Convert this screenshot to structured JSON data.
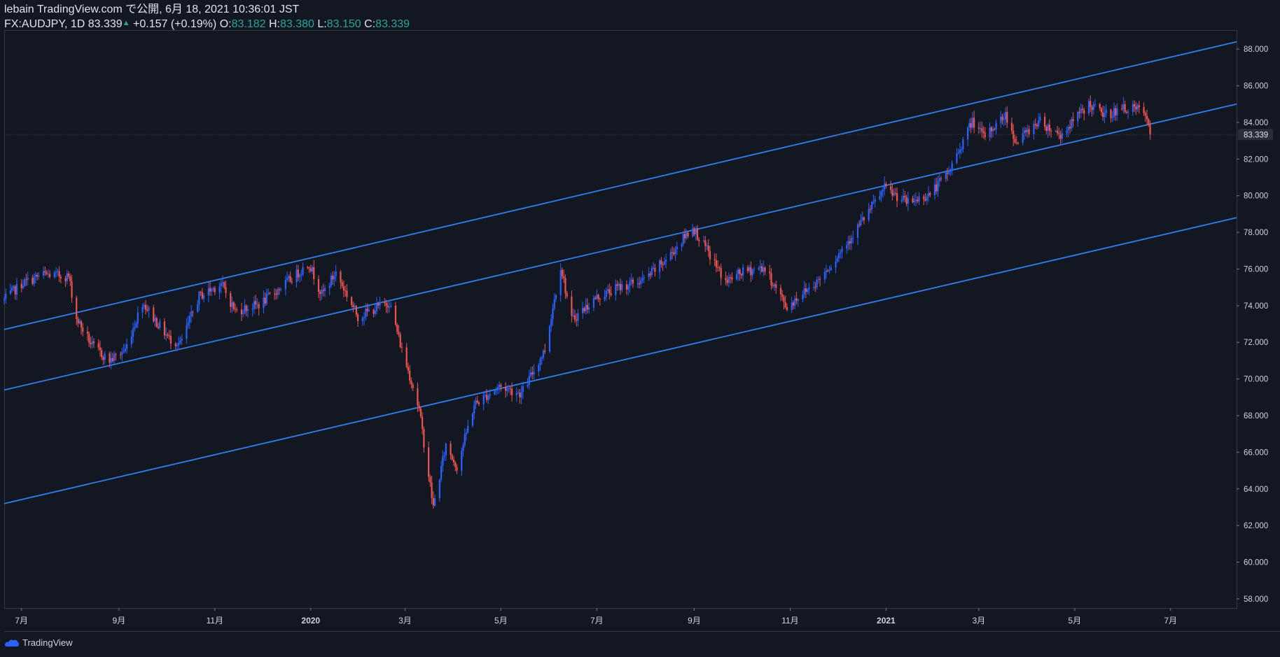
{
  "header": {
    "line1": "lebain TradingView.com で公開, 6月 18, 2021 10:36:01 JST",
    "symbol": "FX:AUDJPY, 1D 83.339",
    "change": "+0.157 (+0.19%)",
    "o_label": "O:",
    "o_value": "83.182",
    "h_label": "H:",
    "h_value": "83.380",
    "l_label": "L:",
    "l_value": "83.150",
    "c_label": "C:",
    "c_value": "83.339"
  },
  "brand": {
    "name": "TradingView",
    "icon": "tradingview-cloud-icon"
  },
  "colors": {
    "background": "#131722",
    "up": "#2962ff",
    "down": "#ef5350",
    "trendline": "#2f80ed",
    "axis_text": "#d1d4dc",
    "border": "#363a45"
  },
  "chart_data": {
    "type": "candlestick",
    "symbol": "FX:AUDJPY",
    "interval": "1D",
    "last_price": "83.339",
    "y_ticks": [
      "88.000",
      "86.000",
      "84.000",
      "82.000",
      "80.000",
      "78.000",
      "76.000",
      "74.000",
      "72.000",
      "70.000",
      "68.000",
      "66.000",
      "64.000",
      "62.000",
      "60.000",
      "58.000"
    ],
    "ylim": [
      57.5,
      89.0
    ],
    "x_ticks": [
      {
        "label": "7月",
        "date": "2019-07-01"
      },
      {
        "label": "9月",
        "date": "2019-09-01"
      },
      {
        "label": "11月",
        "date": "2019-11-01"
      },
      {
        "label": "2020",
        "date": "2020-01-01"
      },
      {
        "label": "3月",
        "date": "2020-03-01"
      },
      {
        "label": "5月",
        "date": "2020-05-01"
      },
      {
        "label": "7月",
        "date": "2020-07-01"
      },
      {
        "label": "9月",
        "date": "2020-09-01"
      },
      {
        "label": "11月",
        "date": "2020-11-01"
      },
      {
        "label": "2021",
        "date": "2021-01-01"
      },
      {
        "label": "3月",
        "date": "2021-03-01"
      },
      {
        "label": "5月",
        "date": "2021-05-01"
      },
      {
        "label": "7月",
        "date": "2021-07-01"
      }
    ],
    "xlim": [
      "2019-06-20",
      "2021-08-12"
    ],
    "price_path": [
      [
        "2019-06-20",
        74.3
      ],
      [
        "2019-07-01",
        75.2
      ],
      [
        "2019-07-15",
        75.7
      ],
      [
        "2019-07-31",
        75.6
      ],
      [
        "2019-08-05",
        73.3
      ],
      [
        "2019-08-15",
        71.8
      ],
      [
        "2019-08-26",
        71.0
      ],
      [
        "2019-09-05",
        71.6
      ],
      [
        "2019-09-16",
        74.2
      ],
      [
        "2019-09-25",
        73.1
      ],
      [
        "2019-10-03",
        72.2
      ],
      [
        "2019-10-10",
        71.9
      ],
      [
        "2019-10-22",
        74.5
      ],
      [
        "2019-11-05",
        75.2
      ],
      [
        "2019-11-14",
        73.7
      ],
      [
        "2019-11-30",
        74.1
      ],
      [
        "2019-12-20",
        75.5
      ],
      [
        "2019-12-31",
        76.3
      ],
      [
        "2020-01-08",
        74.6
      ],
      [
        "2020-01-17",
        75.8
      ],
      [
        "2020-01-31",
        73.4
      ],
      [
        "2020-02-10",
        73.8
      ],
      [
        "2020-02-20",
        74.2
      ],
      [
        "2020-02-28",
        71.6
      ],
      [
        "2020-03-06",
        69.6
      ],
      [
        "2020-03-10",
        68.3
      ],
      [
        "2020-03-19",
        63.0
      ],
      [
        "2020-03-27",
        66.4
      ],
      [
        "2020-04-03",
        65.2
      ],
      [
        "2020-04-14",
        68.6
      ],
      [
        "2020-04-30",
        69.6
      ],
      [
        "2020-05-14",
        69.2
      ],
      [
        "2020-05-29",
        71.6
      ],
      [
        "2020-06-08",
        76.2
      ],
      [
        "2020-06-15",
        73.2
      ],
      [
        "2020-06-30",
        74.4
      ],
      [
        "2020-07-15",
        75.0
      ],
      [
        "2020-07-31",
        75.4
      ],
      [
        "2020-08-15",
        76.6
      ],
      [
        "2020-08-31",
        78.3
      ],
      [
        "2020-09-21",
        75.3
      ],
      [
        "2020-10-01",
        75.8
      ],
      [
        "2020-10-15",
        76.1
      ],
      [
        "2020-10-30",
        73.9
      ],
      [
        "2020-11-06",
        74.5
      ],
      [
        "2020-11-18",
        75.3
      ],
      [
        "2020-11-30",
        76.6
      ],
      [
        "2020-12-15",
        78.4
      ],
      [
        "2020-12-31",
        80.4
      ],
      [
        "2021-01-15",
        79.6
      ],
      [
        "2021-01-29",
        80.1
      ],
      [
        "2021-02-10",
        81.3
      ],
      [
        "2021-02-25",
        84.1
      ],
      [
        "2021-03-04",
        83.2
      ],
      [
        "2021-03-18",
        84.4
      ],
      [
        "2021-03-25",
        82.9
      ],
      [
        "2021-04-08",
        84.1
      ],
      [
        "2021-04-22",
        83.3
      ],
      [
        "2021-05-10",
        85.0
      ],
      [
        "2021-05-20",
        84.4
      ],
      [
        "2021-06-03",
        84.8
      ],
      [
        "2021-06-14",
        84.6
      ],
      [
        "2021-06-18",
        83.339
      ]
    ],
    "trendlines": [
      {
        "name": "",
        "start": [
          "2019-06-20",
          72.7
        ],
        "end": [
          "2021-08-12",
          88.4
        ]
      },
      {
        "name": "",
        "start": [
          "2019-06-20",
          69.4
        ],
        "end": [
          "2021-08-12",
          85.0
        ]
      },
      {
        "name": "",
        "start": [
          "2019-06-20",
          63.2
        ],
        "end": [
          "2021-08-12",
          78.8
        ]
      }
    ],
    "grid": false,
    "legend": "none"
  }
}
